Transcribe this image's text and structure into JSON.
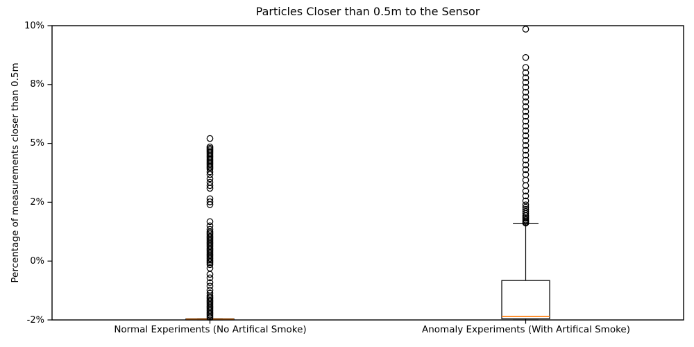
{
  "chart_data": {
    "type": "boxplot",
    "title": "Particles Closer than 0.5m to the Sensor",
    "ylabel": "Percentage of measurements closer than 0.5m",
    "xlabel": "",
    "categories": [
      "Normal Experiments (No Artifical Smoke)",
      "Anomaly Experiments (With Artifical Smoke)"
    ],
    "y_ticks": {
      "values": [
        -2,
        0,
        2,
        5,
        8,
        10
      ],
      "labels": [
        "-2%",
        "0%",
        "2%",
        "5%",
        "8%",
        "10%"
      ],
      "note": "ticks are evenly spaced on the axis despite uneven values"
    },
    "ylim_labels": [
      "-2%",
      "10%"
    ],
    "grid": false,
    "legend": null,
    "groups": [
      {
        "name": "normal",
        "stats": {
          "whisker_low": -2.0,
          "q1": -2.0,
          "median": -1.98,
          "q3": -1.96,
          "whisker_high": -1.96
        },
        "outliers": [
          5.25,
          4.82,
          4.75,
          4.68,
          4.61,
          4.54,
          4.47,
          4.4,
          4.33,
          4.26,
          4.19,
          4.12,
          4.05,
          3.98,
          3.91,
          3.84,
          3.77,
          3.7,
          3.55,
          3.41,
          3.2,
          3.02,
          2.85,
          2.71,
          2.18,
          2.02,
          1.92,
          1.34,
          1.2,
          1.08,
          0.99,
          0.94,
          0.89,
          0.84,
          0.79,
          0.74,
          0.69,
          0.64,
          0.59,
          0.54,
          0.49,
          0.44,
          0.39,
          0.34,
          0.29,
          0.24,
          0.19,
          0.14,
          0.09,
          0.04,
          -0.01,
          -0.06,
          -0.12,
          -0.24,
          -0.45,
          -0.57,
          -0.73,
          -0.85,
          -0.99,
          -1.09,
          -1.18,
          -1.23,
          -1.28,
          -1.33,
          -1.38,
          -1.43,
          -1.48,
          -1.53,
          -1.58,
          -1.63,
          -1.68,
          -1.73,
          -1.78,
          -1.83,
          -1.88,
          -1.93
        ]
      },
      {
        "name": "anomaly",
        "stats": {
          "whisker_low": -2.0,
          "q1": -1.96,
          "median": -1.88,
          "q3": -0.66,
          "whisker_high": 1.27
        },
        "outliers": [
          9.88,
          8.92,
          8.58,
          8.4,
          8.23,
          8.07,
          7.86,
          7.61,
          7.36,
          7.12,
          6.87,
          6.62,
          6.38,
          6.13,
          5.88,
          5.64,
          5.39,
          5.14,
          4.89,
          4.65,
          4.4,
          4.15,
          3.9,
          3.66,
          3.41,
          3.13,
          2.85,
          2.57,
          2.32,
          2.07,
          1.91,
          1.83,
          1.76,
          1.69,
          1.62,
          1.55,
          1.5,
          1.45,
          1.4,
          1.36,
          1.32,
          1.29
        ]
      }
    ],
    "colors": {
      "background": "#ffffff",
      "box_line": "#000000",
      "whisker_line": "#000000",
      "outlier_edge": "#000000",
      "median": "#ff7f0e",
      "text": "#000000"
    }
  }
}
